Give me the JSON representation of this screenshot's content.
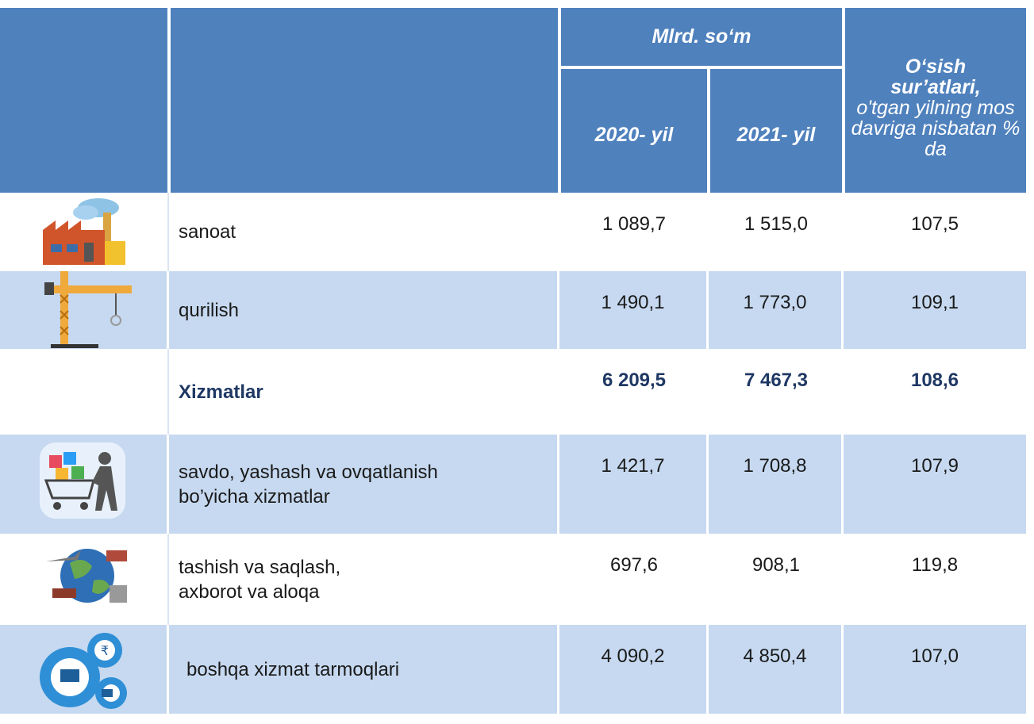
{
  "header": {
    "unit": "Mlrd. so‘m",
    "years": [
      "2020- yil",
      "2021- yil"
    ],
    "growth_title": "O‘sish sur’atlari,",
    "growth_note": "o'tgan yilning mos davriga nisbatan % da"
  },
  "rows": [
    {
      "label": [
        "sanoat"
      ],
      "values": [
        "1 089,7",
        "1 515,0",
        "107,5"
      ]
    },
    {
      "label": [
        "qurilish"
      ],
      "values": [
        "1 490,1",
        "1 773,0",
        "109,1"
      ]
    },
    {
      "label": [
        "Xizmatlar"
      ],
      "values": [
        "6 209,5",
        "7 467,3",
        "108,6"
      ]
    },
    {
      "label": [
        "savdo, yashash va ovqatlanish",
        "bo’yicha xizmatlar"
      ],
      "values": [
        "1 421,7",
        "1 708,8",
        "107,9"
      ]
    },
    {
      "label": [
        "tashish va saqlash,",
        "axborot va aloqa"
      ],
      "values": [
        "697,6",
        "908,1",
        "119,8"
      ]
    },
    {
      "label": [
        "boshqa xizmat tarmoqlari"
      ],
      "values": [
        "4 090,2",
        "4 850,4",
        "107,0"
      ]
    }
  ]
}
